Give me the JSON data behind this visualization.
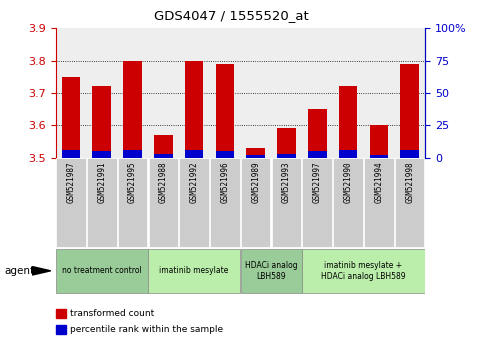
{
  "title": "GDS4047 / 1555520_at",
  "samples": [
    "GSM521987",
    "GSM521991",
    "GSM521995",
    "GSM521988",
    "GSM521992",
    "GSM521996",
    "GSM521989",
    "GSM521993",
    "GSM521997",
    "GSM521990",
    "GSM521994",
    "GSM521998"
  ],
  "transformed_count": [
    3.75,
    3.72,
    3.8,
    3.57,
    3.8,
    3.79,
    3.53,
    3.59,
    3.65,
    3.72,
    3.6,
    3.79
  ],
  "percentile_rank": [
    6,
    5,
    6,
    3,
    6,
    5,
    2,
    3,
    5,
    6,
    2,
    6
  ],
  "bar_base": 3.5,
  "ylim_left": [
    3.5,
    3.9
  ],
  "ylim_right": [
    0,
    100
  ],
  "yticks_left": [
    3.5,
    3.6,
    3.7,
    3.8,
    3.9
  ],
  "yticks_right": [
    0,
    25,
    50,
    75,
    100
  ],
  "grid_values": [
    3.6,
    3.7,
    3.8
  ],
  "bar_color_red": "#cc0000",
  "bar_color_blue": "#0000cc",
  "bar_width": 0.6,
  "agent_groups": [
    {
      "label": "no treatment control",
      "start": 0,
      "end": 3,
      "color": "#99cc99"
    },
    {
      "label": "imatinib mesylate",
      "start": 3,
      "end": 6,
      "color": "#bbeeaa"
    },
    {
      "label": "HDACi analog\nLBH589",
      "start": 6,
      "end": 8,
      "color": "#99cc99"
    },
    {
      "label": "imatinib mesylate +\nHDACi analog LBH589",
      "start": 8,
      "end": 12,
      "color": "#bbeeaa"
    }
  ],
  "legend_items": [
    {
      "label": "transformed count",
      "color": "#cc0000"
    },
    {
      "label": "percentile rank within the sample",
      "color": "#0000cc"
    }
  ],
  "plot_bg_color": "#eeeeee",
  "sample_box_color": "#cccccc",
  "tick_color_left": "#cc0000",
  "tick_color_right": "#0000cc"
}
